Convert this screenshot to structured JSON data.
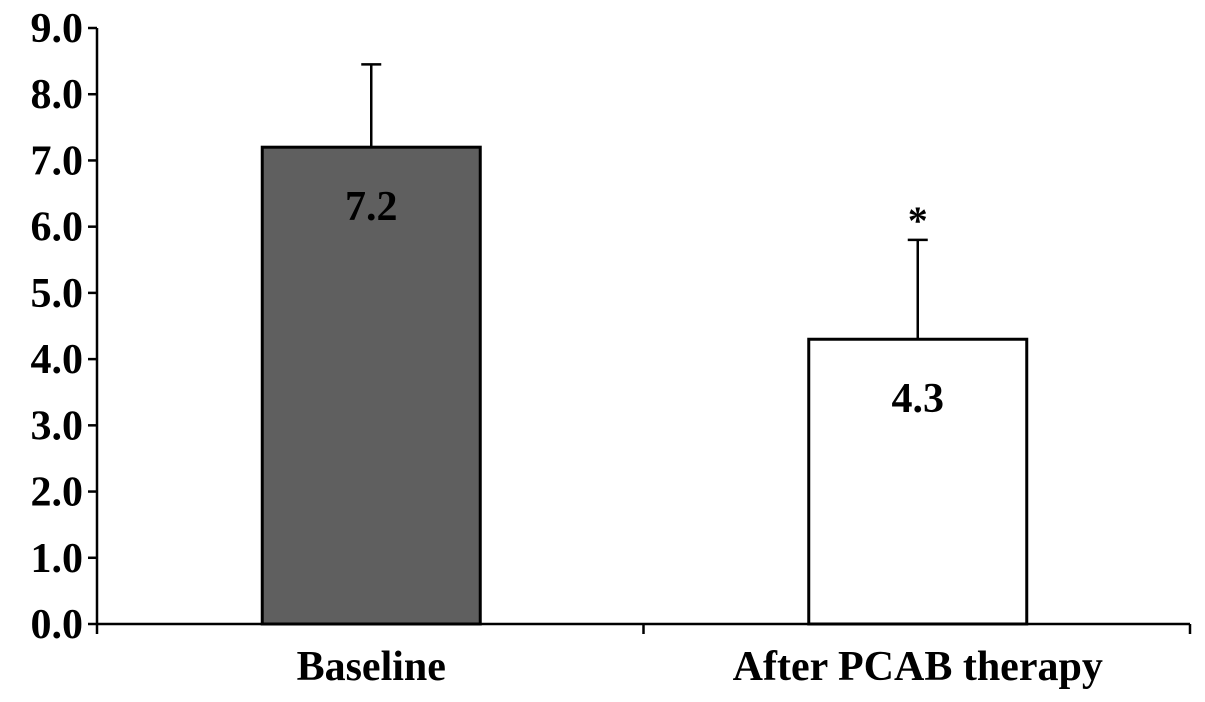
{
  "chart_data": {
    "type": "bar",
    "title": "",
    "xlabel": "",
    "ylabel": "",
    "ylim": [
      0,
      9
    ],
    "ytick_values": [
      0,
      1,
      2,
      3,
      4,
      5,
      6,
      7,
      8,
      9
    ],
    "ytick_labels": [
      "0.0",
      "1.0",
      "2.0",
      "3.0",
      "4.0",
      "5.0",
      "6.0",
      "7.0",
      "8.0",
      "9.0"
    ],
    "categories": [
      "Baseline",
      "After PCAB therapy"
    ],
    "values": [
      7.2,
      4.3
    ],
    "value_labels": [
      "7.2",
      "4.3"
    ],
    "error_upper": [
      8.45,
      5.8
    ],
    "significance_markers": [
      "",
      "*"
    ],
    "bar_colors": [
      "#5f5f5f",
      "#ffffff"
    ],
    "grid": false,
    "legend": "none"
  }
}
